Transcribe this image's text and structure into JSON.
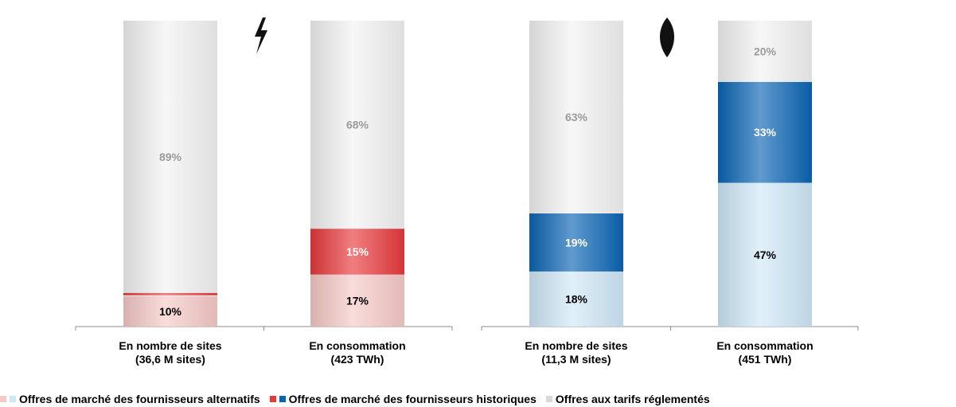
{
  "chart_data": [
    {
      "type": "bar",
      "stacked": true,
      "icon": "lightning-bolt-icon",
      "categories": [
        "En nombre de sites\n(36,6 M sites)",
        "En consommation\n(423 TWh)"
      ],
      "series": [
        {
          "key": "alternatifs",
          "values": [
            10,
            17
          ],
          "labels": [
            "10%",
            "17%"
          ],
          "label_color": "#000000",
          "color": "#f6c9c6"
        },
        {
          "key": "historiques",
          "values": [
            1,
            15
          ],
          "labels": [
            "1%",
            "15%"
          ],
          "label_color": "#ffffff",
          "color": "#e8393c"
        },
        {
          "key": "tarifs",
          "values": [
            89,
            68
          ],
          "labels": [
            "89%",
            "68%"
          ],
          "label_color": "#9a9a9a",
          "color": "#f2f2f2"
        }
      ],
      "ylim": [
        0,
        100
      ]
    },
    {
      "type": "bar",
      "stacked": true,
      "icon": "gas-flame-icon",
      "categories": [
        "En nombre de sites\n(11,3 M sites)",
        "En consommation\n(451 TWh)"
      ],
      "series": [
        {
          "key": "alternatifs",
          "values": [
            18,
            47
          ],
          "labels": [
            "18%",
            "47%"
          ],
          "label_color": "#000000",
          "color": "#cfe8f8"
        },
        {
          "key": "historiques",
          "values": [
            19,
            33
          ],
          "labels": [
            "19%",
            "33%"
          ],
          "label_color": "#ffffff",
          "color": "#0a64b4"
        },
        {
          "key": "tarifs",
          "values": [
            63,
            20
          ],
          "labels": [
            "63%",
            "20%"
          ],
          "label_color": "#9a9a9a",
          "color": "#f2f2f2"
        }
      ],
      "ylim": [
        0,
        100
      ]
    }
  ],
  "legend": {
    "alternatifs": "Offres de marché des fournisseurs alternatifs",
    "historiques": "Offres de marché des fournisseurs historiques",
    "tarifs": "Offres aux tarifs réglementés"
  }
}
